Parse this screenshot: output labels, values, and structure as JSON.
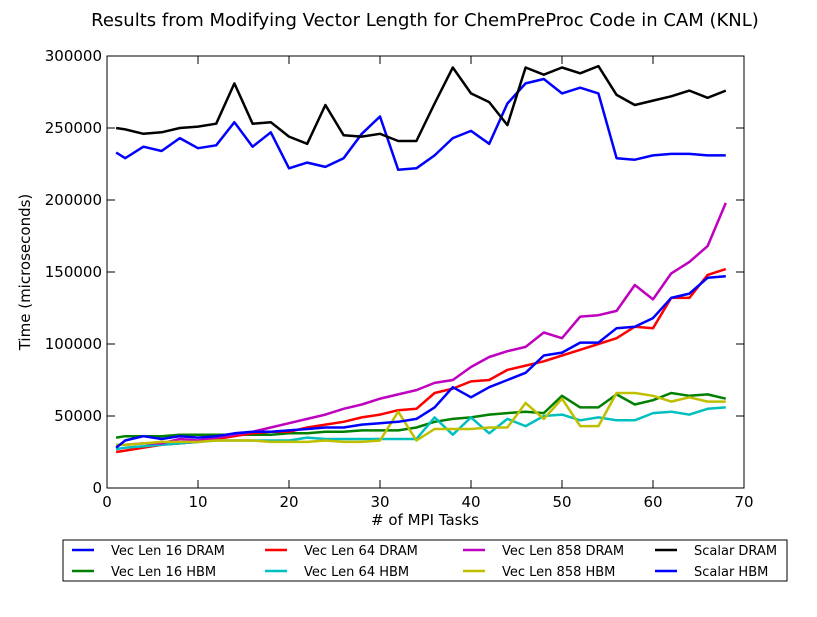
{
  "chart_data": {
    "type": "line",
    "title": "Results from Modifying Vector Length for ChemPreProc Code in CAM (KNL)",
    "xlabel": "# of MPI Tasks",
    "ylabel": "Time (microseconds)",
    "xlim": [
      0,
      70
    ],
    "ylim": [
      0,
      300000
    ],
    "xticks": [
      0,
      10,
      20,
      30,
      40,
      50,
      60,
      70
    ],
    "yticks": [
      0,
      50000,
      100000,
      150000,
      200000,
      250000,
      300000
    ],
    "grid": false,
    "legend_placement": "below",
    "x": [
      1,
      2,
      4,
      6,
      8,
      10,
      12,
      14,
      16,
      18,
      20,
      22,
      24,
      26,
      28,
      30,
      32,
      34,
      36,
      38,
      40,
      42,
      44,
      46,
      48,
      50,
      52,
      54,
      56,
      58,
      60,
      62,
      64,
      66,
      68
    ],
    "series": [
      {
        "name": "Vec Len 16 DRAM",
        "color": "#0000ff",
        "values": [
          233000,
          229000,
          237000,
          234000,
          243000,
          236000,
          238000,
          254000,
          237000,
          247000,
          222000,
          226000,
          223000,
          229000,
          246000,
          258000,
          221000,
          222000,
          231000,
          243000,
          248000,
          239000,
          267000,
          281000,
          284000,
          274000,
          278000,
          274000,
          229000,
          228000,
          231000,
          232000,
          232000,
          231000,
          231000
        ]
      },
      {
        "name": "Vec Len 16 HBM",
        "color": "#008000",
        "values": [
          35000,
          36000,
          36000,
          36000,
          37000,
          37000,
          37000,
          37000,
          37000,
          37000,
          38000,
          38000,
          39000,
          39000,
          40000,
          40000,
          40000,
          42000,
          46000,
          48000,
          49000,
          51000,
          52000,
          53000,
          52000,
          64000,
          56000,
          56000,
          65000,
          58000,
          61000,
          66000,
          64000,
          65000,
          62000
        ]
      },
      {
        "name": "Vec Len 64 DRAM",
        "color": "#ff0000",
        "values": [
          25000,
          26000,
          28000,
          30000,
          31000,
          32000,
          34000,
          36000,
          38000,
          39000,
          39000,
          42000,
          44000,
          46000,
          49000,
          51000,
          54000,
          55000,
          66000,
          69000,
          74000,
          75000,
          82000,
          85000,
          88000,
          92000,
          96000,
          100000,
          104000,
          112000,
          111000,
          132000,
          132000,
          148000,
          152000
        ]
      },
      {
        "name": "Vec Len 64 HBM",
        "color": "#00bfbf",
        "values": [
          27000,
          28000,
          29000,
          30000,
          31000,
          32000,
          33000,
          33000,
          33000,
          33000,
          33000,
          35000,
          34000,
          34000,
          34000,
          34000,
          34000,
          34000,
          49000,
          37000,
          49000,
          38000,
          48000,
          43000,
          50000,
          51000,
          47000,
          49000,
          47000,
          47000,
          52000,
          53000,
          51000,
          55000,
          56000
        ]
      },
      {
        "name": "Vec Len 858 DRAM",
        "color": "#bf00bf",
        "values": [
          30000,
          30000,
          31000,
          31000,
          34000,
          33000,
          35000,
          37000,
          39000,
          42000,
          45000,
          48000,
          51000,
          55000,
          58000,
          62000,
          65000,
          68000,
          73000,
          75000,
          84000,
          91000,
          95000,
          98000,
          108000,
          104000,
          119000,
          120000,
          123000,
          141000,
          131000,
          149000,
          157000,
          168000,
          198000
        ]
      },
      {
        "name": "Vec Len 858 HBM",
        "color": "#bfbf00",
        "values": [
          30000,
          30000,
          31000,
          32000,
          32000,
          32000,
          33000,
          33000,
          33000,
          32000,
          32000,
          32000,
          33000,
          32000,
          32000,
          33000,
          53000,
          33000,
          41000,
          41000,
          41000,
          42000,
          42000,
          59000,
          48000,
          62000,
          43000,
          43000,
          66000,
          66000,
          64000,
          60000,
          63000,
          60000,
          60000
        ]
      },
      {
        "name": "Scalar DRAM",
        "color": "#000000",
        "values": [
          250000,
          249000,
          246000,
          247000,
          250000,
          251000,
          253000,
          281000,
          253000,
          254000,
          244000,
          239000,
          266000,
          245000,
          244000,
          246000,
          241000,
          241000,
          267000,
          292000,
          274000,
          268000,
          252000,
          292000,
          287000,
          292000,
          288000,
          293000,
          273000,
          266000,
          269000,
          272000,
          276000,
          271000,
          276000
        ]
      },
      {
        "name": "Scalar HBM",
        "color": "#0000ff",
        "values": [
          28000,
          33000,
          36000,
          34000,
          36000,
          35000,
          36000,
          38000,
          39000,
          39000,
          40000,
          41000,
          42000,
          42000,
          44000,
          45000,
          46000,
          48000,
          56000,
          70000,
          63000,
          70000,
          75000,
          80000,
          92000,
          94000,
          101000,
          101000,
          111000,
          112000,
          118000,
          132000,
          135000,
          146000,
          147000
        ]
      }
    ]
  }
}
